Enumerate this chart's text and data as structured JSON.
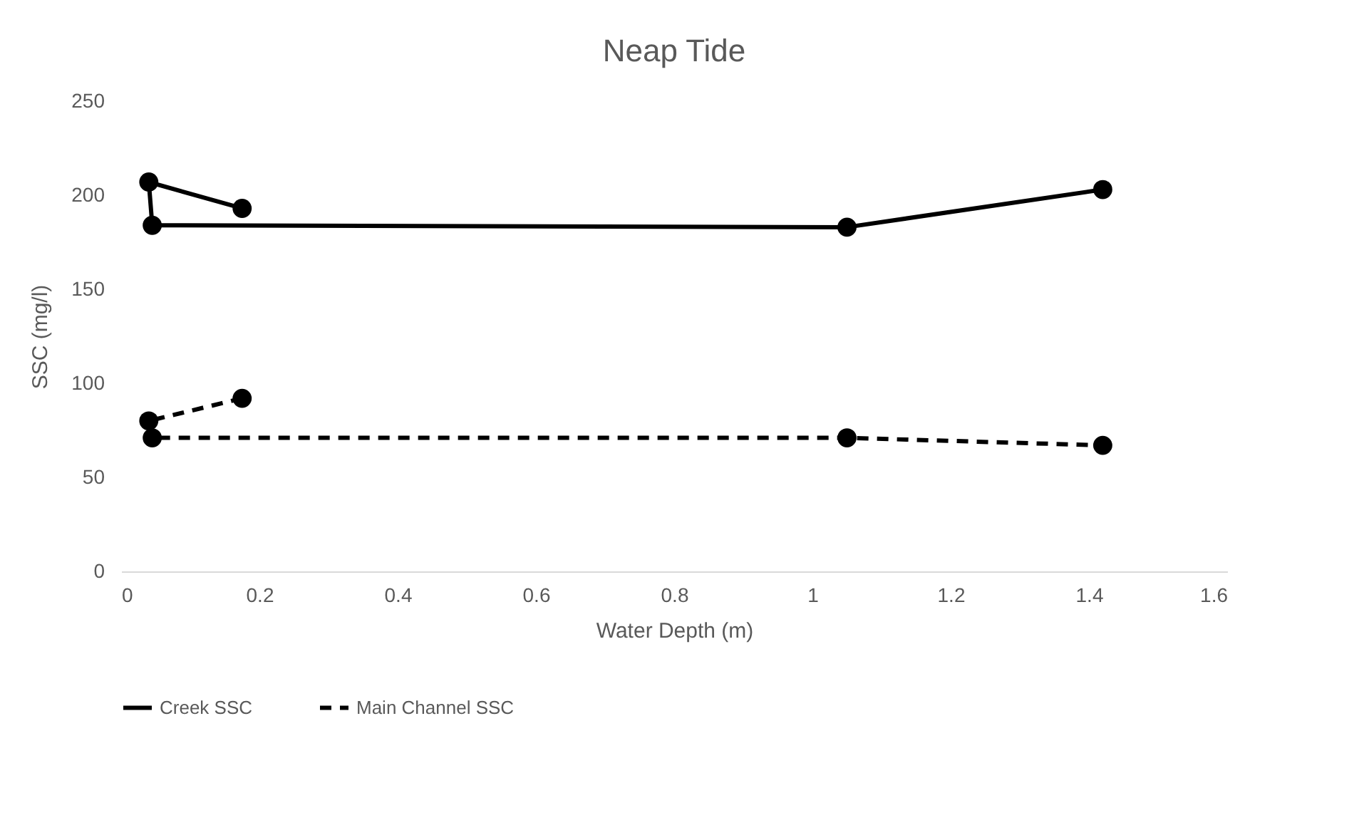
{
  "chart_data": {
    "type": "line",
    "title": "Neap Tide",
    "xlabel": "Water Depth (m)",
    "ylabel": "SSC (mg/l)",
    "xlim": [
      0,
      1.6
    ],
    "xticks": [
      0,
      0.2,
      0.4,
      0.6,
      0.8,
      1,
      1.2,
      1.4,
      1.6
    ],
    "ylim": [
      0,
      250
    ],
    "yticks": [
      0,
      50,
      100,
      150,
      200,
      250
    ],
    "grid": false,
    "legend": "bottom",
    "marker": "circle",
    "series": [
      {
        "name": "Creek SSC",
        "color": "#000000",
        "line_style": "solid",
        "x": [
          0.175,
          0.04,
          0.045,
          1.05,
          1.42
        ],
        "values": [
          193,
          207,
          184,
          183,
          203
        ]
      },
      {
        "name": "Main Channel SSC",
        "color": "#000000",
        "line_style": "dashed",
        "x": [
          0.175,
          0.04,
          0.045,
          1.05,
          1.42
        ],
        "values": [
          92,
          80,
          71,
          71,
          67
        ]
      }
    ]
  }
}
